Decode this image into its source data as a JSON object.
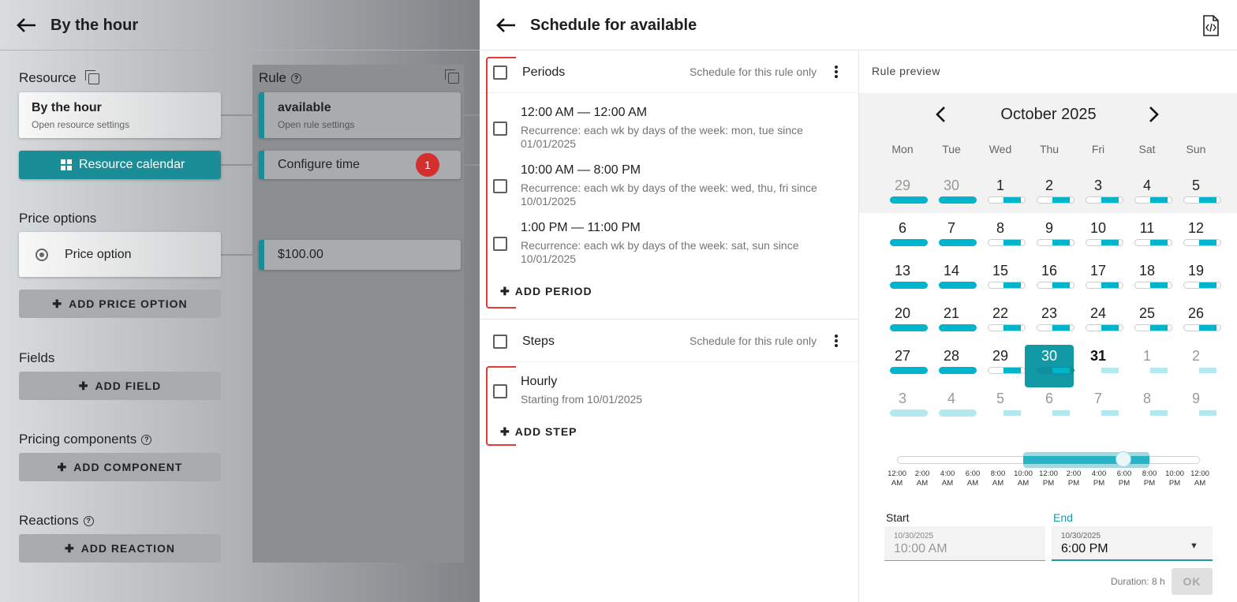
{
  "left": {
    "title": "By the hour",
    "resource_label": "Resource",
    "rule_label": "Rule",
    "resource_card": {
      "title": "By the hour",
      "sub": "Open resource settings"
    },
    "rule_card": {
      "title": "available",
      "sub": "Open rule settings"
    },
    "resource_calendar_btn": "Resource calendar",
    "configure_time": "Configure time",
    "configure_badge": "1",
    "price_options_label": "Price options",
    "price_option": "Price option",
    "price_value": "$100.00",
    "add_price_option": "ADD PRICE OPTION",
    "fields_label": "Fields",
    "add_field": "ADD FIELD",
    "pricing_components_label": "Pricing components",
    "add_component": "ADD COMPONENT",
    "reactions_label": "Reactions",
    "add_reaction": "ADD REACTION"
  },
  "panel": {
    "title": "Schedule for available",
    "periods": {
      "label": "Periods",
      "scope": "Schedule for this rule only",
      "items": [
        {
          "time": "12:00 AM — 12:00 AM",
          "rec1": "Recurrence: each wk by days of the week: mon, tue since",
          "rec2": "01/01/2025"
        },
        {
          "time": "10:00 AM — 8:00 PM",
          "rec1": "Recurrence: each wk by days of the week: wed, thu, fri since",
          "rec2": "10/01/2025"
        },
        {
          "time": "1:00 PM — 11:00 PM",
          "rec1": "Recurrence: each wk by days of the week: sat, sun since",
          "rec2": "10/01/2025"
        }
      ],
      "add": "ADD PERIOD"
    },
    "steps": {
      "label": "Steps",
      "scope": "Schedule for this rule only",
      "items": [
        {
          "name": "Hourly",
          "sub": "Starting from 10/01/2025"
        }
      ],
      "add": "ADD STEP"
    }
  },
  "calendar": {
    "preview_label": "Rule preview",
    "month": "October 2025",
    "weekdays": [
      "Mon",
      "Tue",
      "Wed",
      "Thu",
      "Fri",
      "Sat",
      "Sun"
    ],
    "weeks": [
      [
        "29",
        "30",
        "1",
        "2",
        "3",
        "4",
        "5"
      ],
      [
        "6",
        "7",
        "8",
        "9",
        "10",
        "11",
        "12"
      ],
      [
        "13",
        "14",
        "15",
        "16",
        "17",
        "18",
        "19"
      ],
      [
        "20",
        "21",
        "22",
        "23",
        "24",
        "25",
        "26"
      ],
      [
        "27",
        "28",
        "29",
        "30",
        "31",
        "1",
        "2"
      ],
      [
        "3",
        "4",
        "5",
        "6",
        "7",
        "8",
        "9"
      ]
    ],
    "selected_day": "30",
    "ticks": [
      [
        "12:00",
        "AM"
      ],
      [
        "2:00",
        "AM"
      ],
      [
        "4:00",
        "AM"
      ],
      [
        "6:00",
        "AM"
      ],
      [
        "8:00",
        "AM"
      ],
      [
        "10:00",
        "AM"
      ],
      [
        "12:00",
        "PM"
      ],
      [
        "2:00",
        "PM"
      ],
      [
        "4:00",
        "PM"
      ],
      [
        "6:00",
        "PM"
      ],
      [
        "8:00",
        "PM"
      ],
      [
        "10:00",
        "PM"
      ],
      [
        "12:00",
        "AM"
      ]
    ],
    "start_label": "Start",
    "end_label": "End",
    "start_date": "10/30/2025",
    "start_time": "10:00 AM",
    "end_date": "10/30/2025",
    "end_time": "6:00 PM",
    "duration": "Duration: 8 h",
    "ok": "OK",
    "accent": "#00b4cc"
  }
}
